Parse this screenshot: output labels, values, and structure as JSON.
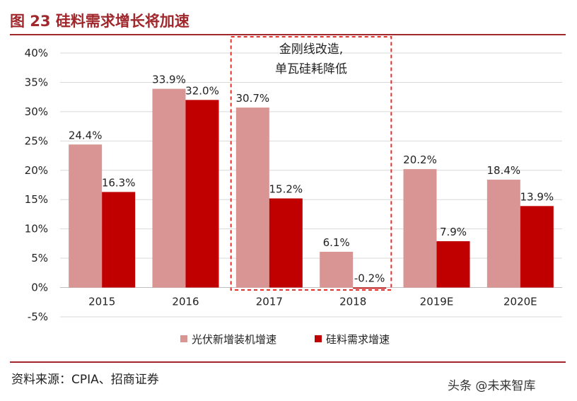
{
  "header": {
    "title": "图 23 硅料需求增长将加速"
  },
  "footer": {
    "source": "资料来源：CPIA、招商证券",
    "watermark": "头条 @未来智库"
  },
  "chart_data": {
    "type": "bar",
    "title": "",
    "xlabel": "",
    "ylabel": "",
    "categories": [
      "2015",
      "2016",
      "2017",
      "2018",
      "2019E",
      "2020E"
    ],
    "series": [
      {
        "name": "光伏新增装机增速",
        "values": [
          24.4,
          33.9,
          30.7,
          6.1,
          20.2,
          18.4
        ],
        "labels": [
          "24.4%",
          "33.9%",
          "30.7%",
          "6.1%",
          "20.2%",
          "18.4%"
        ],
        "color": "#d99594"
      },
      {
        "name": "硅料需求增速",
        "values": [
          16.3,
          32.0,
          15.2,
          -0.2,
          7.9,
          13.9
        ],
        "labels": [
          "16.3%",
          "32.0%",
          "15.2%",
          "-0.2%",
          "7.9%",
          "13.9%"
        ],
        "color": "#c00000"
      }
    ],
    "ylim": [
      -5,
      40
    ],
    "yticks": [
      40,
      35,
      30,
      25,
      20,
      15,
      10,
      5,
      0,
      -5
    ],
    "ytick_labels": [
      "40%",
      "35%",
      "30%",
      "25%",
      "20%",
      "15%",
      "10%",
      "5%",
      "0%",
      "-5%"
    ],
    "grid": true,
    "legend_position": "bottom",
    "annotation": {
      "lines": [
        "金刚线改造,",
        "单瓦硅耗降低"
      ],
      "highlight_categories": [
        "2017",
        "2018"
      ],
      "border_color": "#e0312d"
    }
  }
}
